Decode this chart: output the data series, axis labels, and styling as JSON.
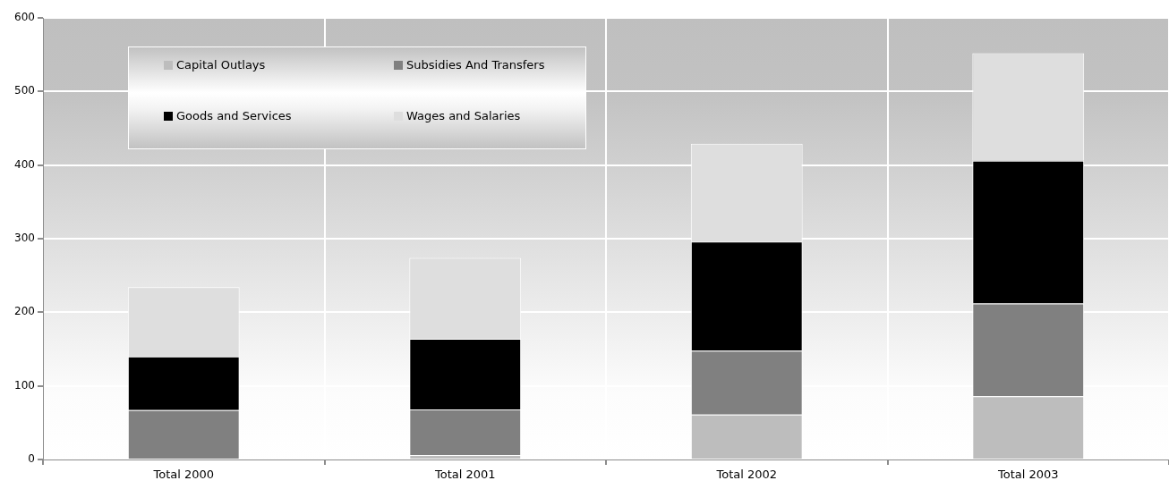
{
  "chart_data": {
    "type": "bar",
    "categories": [
      "Total 2000",
      "Total 2001",
      "Total 2002",
      "Total 2003"
    ],
    "stacked": true,
    "series": [
      {
        "name": "Capital Outlays",
        "color": "#bdbdbd",
        "values": [
          0,
          6,
          61,
          86
        ]
      },
      {
        "name": "Subsidies And Transfers",
        "color": "#808080",
        "values": [
          67,
          62,
          87,
          126
        ]
      },
      {
        "name": "Goods and Services",
        "color": "#000000",
        "values": [
          73,
          96,
          148,
          194
        ]
      },
      {
        "name": "Wages and Salaries",
        "color": "#dedede",
        "values": [
          94,
          110,
          133,
          146
        ]
      }
    ],
    "ylim": [
      0,
      600
    ],
    "yticks": [
      0,
      100,
      200,
      300,
      400,
      500,
      600
    ],
    "grid": true,
    "legend": "top left"
  }
}
